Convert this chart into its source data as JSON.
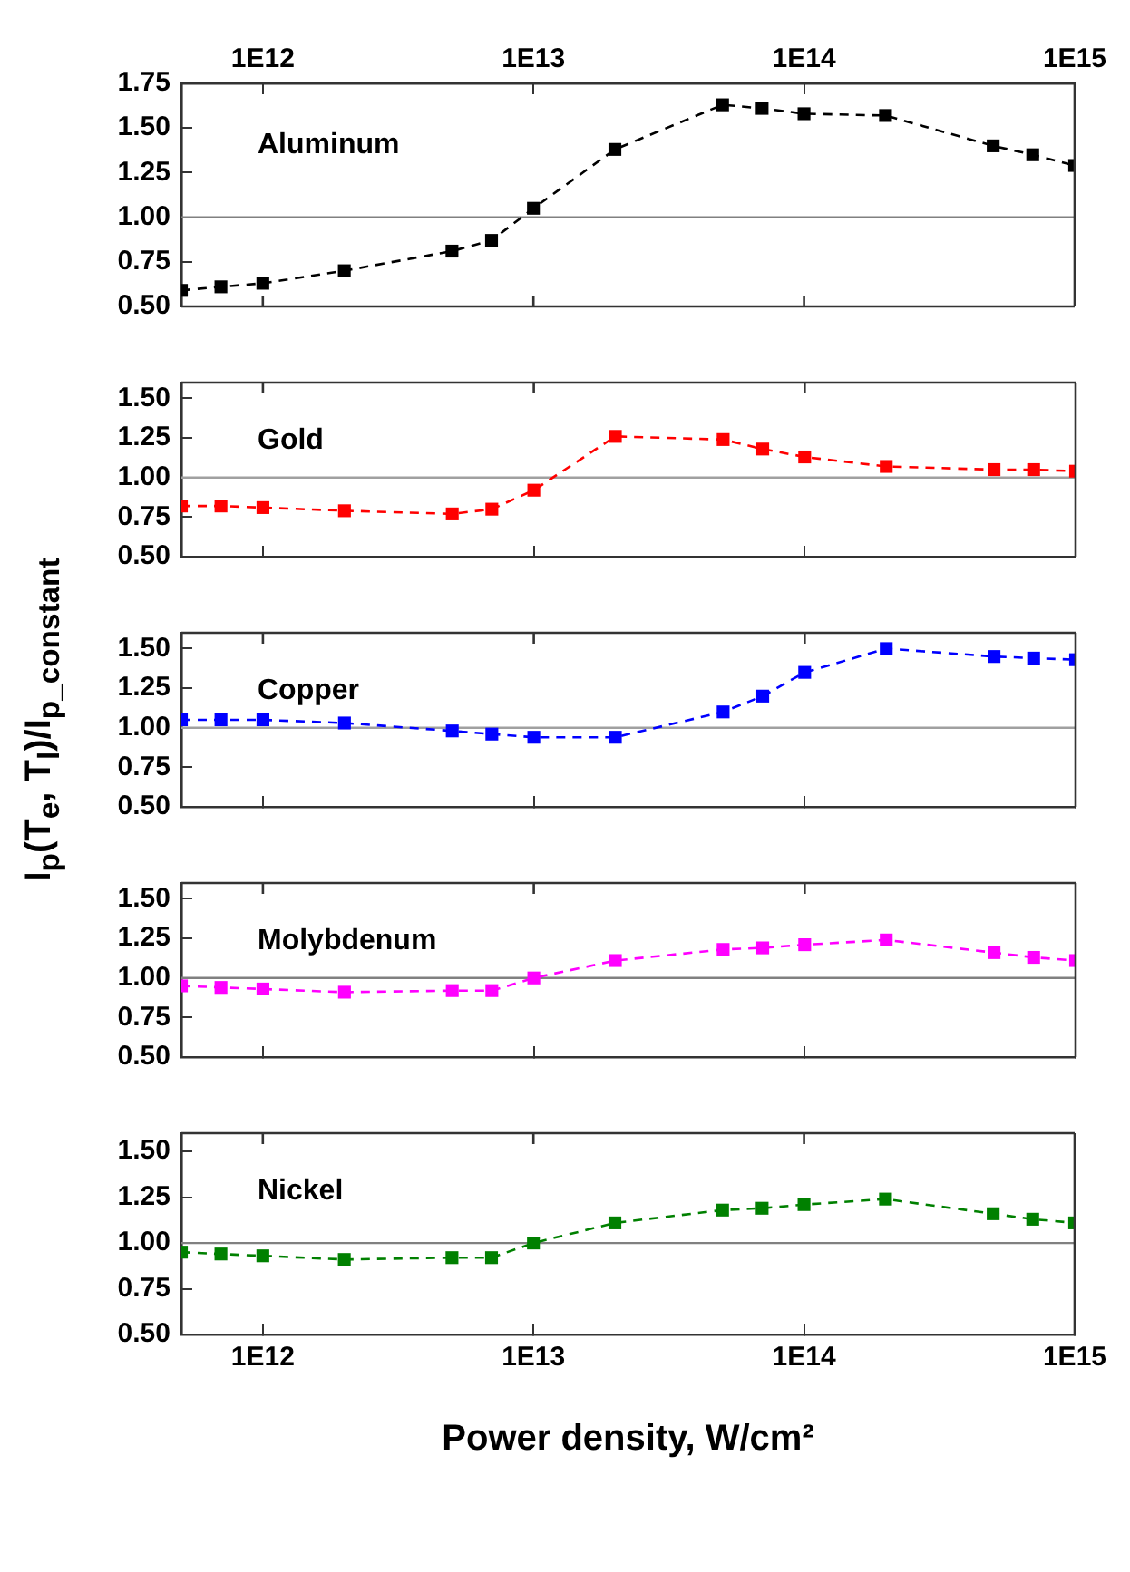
{
  "chart_data": [
    {
      "type": "line",
      "x": [
        500000000000.0,
        700000000000.0,
        1000000000000.0,
        2000000000000.0,
        5000000000000.0,
        7000000000000.0,
        10000000000000.0,
        20000000000000.0,
        50000000000000.0,
        70000000000000.0,
        100000000000000.0,
        200000000000000.0,
        500000000000000.0,
        700000000000000.0,
        1000000000000000.0
      ],
      "series": [
        {
          "name": "Aluminum",
          "color": "#000000",
          "values": [
            0.59,
            0.61,
            0.63,
            0.7,
            0.81,
            0.87,
            1.05,
            1.38,
            1.63,
            1.61,
            1.58,
            1.57,
            1.4,
            1.35,
            1.29
          ]
        }
      ],
      "log": "x",
      "xlim": [
        500000000000.0,
        1000000000000000.0
      ],
      "xticks": [
        {
          "value": 1000000000000.0,
          "label": "1E12"
        },
        {
          "value": 10000000000000.0,
          "label": "1E13"
        },
        {
          "value": 100000000000000.0,
          "label": "1E14"
        },
        {
          "value": 1000000000000000.0,
          "label": "1E15"
        }
      ],
      "ylim": [
        0.5,
        1.75
      ],
      "yticks": [
        {
          "value": 0.5,
          "label": "0.50"
        },
        {
          "value": 0.75,
          "label": "0.75"
        },
        {
          "value": 1,
          "label": "1.00"
        },
        {
          "value": 1.25,
          "label": "1.25"
        },
        {
          "value": 1.5,
          "label": "1.50"
        },
        {
          "value": 1.75,
          "label": "1.75"
        }
      ],
      "ref_lines": [
        {
          "axis": "y",
          "value": 1,
          "color": "#808080"
        }
      ],
      "grid": false,
      "marker": "square",
      "line_style": "dashed"
    },
    {
      "type": "line",
      "x": [
        500000000000.0,
        700000000000.0,
        1000000000000.0,
        2000000000000.0,
        5000000000000.0,
        7000000000000.0,
        10000000000000.0,
        20000000000000.0,
        50000000000000.0,
        70000000000000.0,
        100000000000000.0,
        200000000000000.0,
        500000000000000.0,
        700000000000000.0,
        1000000000000000.0
      ],
      "tick_labels": "y",
      "series": [
        {
          "name": "Gold",
          "color": "#ff0000",
          "values": [
            0.82,
            0.82,
            0.81,
            0.79,
            0.77,
            0.8,
            0.92,
            1.26,
            1.24,
            1.18,
            1.13,
            1.07,
            1.05,
            1.05,
            1.04
          ]
        }
      ],
      "log": "x",
      "xlim": [
        500000000000.0,
        1000000000000000.0
      ],
      "xticks": [
        {
          "value": 1000000000000.0,
          "label": null
        },
        {
          "value": 10000000000000.0,
          "label": null
        },
        {
          "value": 100000000000000.0,
          "label": null
        },
        {
          "value": 1000000000000000.0,
          "label": null
        }
      ],
      "ylim": [
        0.5,
        1.6
      ],
      "yticks": [
        {
          "value": 0.5,
          "label": "0.50"
        },
        {
          "value": 0.75,
          "label": "0.75"
        },
        {
          "value": 1,
          "label": "1.00"
        },
        {
          "value": 1.25,
          "label": "1.25"
        },
        {
          "value": 1.5,
          "label": "1.50"
        }
      ],
      "ref_lines": [
        {
          "axis": "y",
          "value": 1,
          "color": "#a0a0a0"
        }
      ],
      "grid": false,
      "marker": "square",
      "line_style": "dashed"
    },
    {
      "type": "line",
      "x": [
        500000000000.0,
        700000000000.0,
        1000000000000.0,
        2000000000000.0,
        5000000000000.0,
        7000000000000.0,
        10000000000000.0,
        20000000000000.0,
        50000000000000.0,
        70000000000000.0,
        100000000000000.0,
        200000000000000.0,
        500000000000000.0,
        700000000000000.0,
        1000000000000000.0
      ],
      "tick_labels": "y",
      "series": [
        {
          "name": "Copper",
          "color": "#0000ff",
          "values": [
            1.05,
            1.05,
            1.05,
            1.03,
            0.98,
            0.96,
            0.94,
            0.94,
            1.1,
            1.2,
            1.35,
            1.5,
            1.45,
            1.44,
            1.43
          ]
        }
      ],
      "ylabel": "I$_{p}$(T$_{e}$, T$_{l}$)/I$_{p_constant}$",
      "log": "x",
      "xlim": [
        500000000000.0,
        1000000000000000.0
      ],
      "xticks": [
        {
          "value": 1000000000000.0,
          "label": null
        },
        {
          "value": 10000000000000.0,
          "label": null
        },
        {
          "value": 100000000000000.0,
          "label": null
        },
        {
          "value": 1000000000000000.0,
          "label": null
        }
      ],
      "ylim": [
        0.5,
        1.6
      ],
      "yticks": [
        {
          "value": 0.5,
          "label": "0.50"
        },
        {
          "value": 0.75,
          "label": "0.75"
        },
        {
          "value": 1,
          "label": "1.00"
        },
        {
          "value": 1.25,
          "label": "1.25"
        },
        {
          "value": 1.5,
          "label": "1.50"
        }
      ],
      "ref_lines": [
        {
          "axis": "y",
          "value": 1,
          "color": "#a0a0a0"
        }
      ],
      "grid": false,
      "marker": "square",
      "line_style": "dashed"
    },
    {
      "type": "line",
      "x": [
        500000000000.0,
        700000000000.0,
        1000000000000.0,
        2000000000000.0,
        5000000000000.0,
        7000000000000.0,
        10000000000000.0,
        20000000000000.0,
        50000000000000.0,
        70000000000000.0,
        100000000000000.0,
        200000000000000.0,
        500000000000000.0,
        700000000000000.0,
        1000000000000000.0
      ],
      "tick_labels": "y",
      "series": [
        {
          "name": "Molybdenum",
          "color": "#ff00ff",
          "values": [
            0.95,
            0.94,
            0.93,
            0.91,
            0.92,
            0.92,
            1.0,
            1.11,
            1.18,
            1.19,
            1.21,
            1.24,
            1.16,
            1.13,
            1.11
          ]
        }
      ],
      "log": "x",
      "xlim": [
        500000000000.0,
        1000000000000000.0
      ],
      "xticks": [
        {
          "value": 1000000000000.0,
          "label": null
        },
        {
          "value": 10000000000000.0,
          "label": null
        },
        {
          "value": 100000000000000.0,
          "label": null
        },
        {
          "value": 1000000000000000.0,
          "label": null
        }
      ],
      "ylim": [
        0.5,
        1.6
      ],
      "yticks": [
        {
          "value": 0.5,
          "label": "0.50"
        },
        {
          "value": 0.75,
          "label": "0.75"
        },
        {
          "value": 1,
          "label": "1.00"
        },
        {
          "value": 1.25,
          "label": "1.25"
        },
        {
          "value": 1.5,
          "label": "1.50"
        }
      ],
      "ref_lines": [
        {
          "axis": "y",
          "value": 1,
          "color": "#808080"
        }
      ],
      "grid": false,
      "marker": "square",
      "line_style": "dashed"
    },
    {
      "type": "line",
      "x": [
        500000000000.0,
        700000000000.0,
        1000000000000.0,
        2000000000000.0,
        5000000000000.0,
        7000000000000.0,
        10000000000000.0,
        20000000000000.0,
        50000000000000.0,
        70000000000000.0,
        100000000000000.0,
        200000000000000.0,
        500000000000000.0,
        700000000000000.0,
        1000000000000000.0
      ],
      "series": [
        {
          "name": "Nickel",
          "color": "#008000",
          "values": [
            0.95,
            0.94,
            0.93,
            0.91,
            0.92,
            0.92,
            1.0,
            1.11,
            1.18,
            1.19,
            1.21,
            1.24,
            1.16,
            1.13,
            1.11
          ]
        }
      ],
      "xlabel": "Power density, W/cm²",
      "log": "x",
      "xlim": [
        500000000000.0,
        1000000000000000.0
      ],
      "xticks": [
        {
          "value": 1000000000000.0,
          "label": "1E12"
        },
        {
          "value": 10000000000000.0,
          "label": "1E13"
        },
        {
          "value": 100000000000000.0,
          "label": "1E14"
        },
        {
          "value": 1000000000000000.0,
          "label": "1E15"
        }
      ],
      "ylim": [
        0.5,
        1.6
      ],
      "yticks": [
        {
          "value": 0.5,
          "label": "0.50"
        },
        {
          "value": 0.75,
          "label": "0.75"
        },
        {
          "value": 1,
          "label": "1.00"
        },
        {
          "value": 1.25,
          "label": "1.25"
        },
        {
          "value": 1.5,
          "label": "1.50"
        }
      ],
      "ref_lines": [
        {
          "axis": "y",
          "value": 1,
          "color": "#808080"
        }
      ],
      "grid": false,
      "marker": "square",
      "line_style": "dashed"
    }
  ]
}
